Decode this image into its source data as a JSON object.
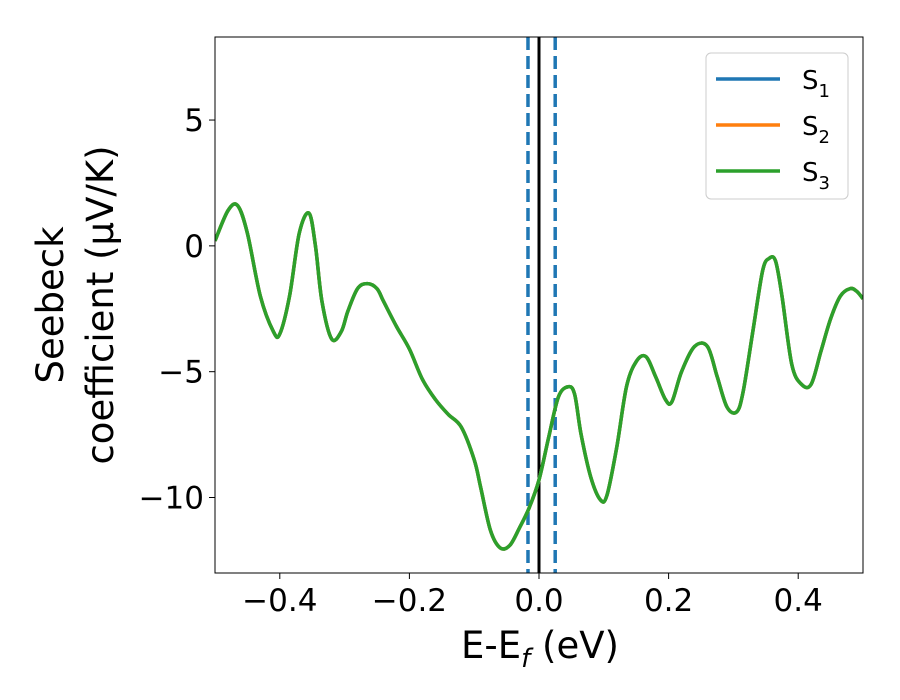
{
  "chart_data": {
    "type": "line",
    "xlabel": "E-E",
    "xlabel_sub": "f",
    "xlabel_unit": " (eV)",
    "ylabel_line1": "Seebeck",
    "ylabel_line2": "coefficient  (μV/K)",
    "xlim": [
      -0.5,
      0.5
    ],
    "ylim": [
      -13,
      8.3
    ],
    "xticks": [
      -0.4,
      -0.2,
      0.0,
      0.2,
      0.4
    ],
    "xtick_labels": [
      "−0.4",
      "−0.2",
      "0.0",
      "0.2",
      "0.4"
    ],
    "yticks": [
      -10,
      -5,
      0,
      5
    ],
    "ytick_labels": [
      "−10",
      "−5",
      "0",
      "5"
    ],
    "legend_position": "top-right",
    "vlines": [
      {
        "x": 0.0,
        "style": "solid",
        "color": "#000000"
      },
      {
        "x": -0.017,
        "style": "dashed",
        "color": "#1f77b4"
      },
      {
        "x": 0.025,
        "style": "dashed",
        "color": "#1f77b4"
      }
    ],
    "series": [
      {
        "name": "S",
        "sub": "1",
        "color": "#1f77b4"
      },
      {
        "name": "S",
        "sub": "2",
        "color": "#ff7f0e"
      },
      {
        "name": "S",
        "sub": "3",
        "color": "#2ca02c"
      }
    ],
    "x": [
      -0.5,
      -0.48,
      -0.465,
      -0.45,
      -0.43,
      -0.41,
      -0.4,
      -0.385,
      -0.37,
      -0.355,
      -0.345,
      -0.335,
      -0.32,
      -0.305,
      -0.295,
      -0.28,
      -0.265,
      -0.25,
      -0.24,
      -0.22,
      -0.2,
      -0.18,
      -0.16,
      -0.14,
      -0.12,
      -0.1,
      -0.09,
      -0.075,
      -0.06,
      -0.045,
      -0.03,
      -0.015,
      0.0,
      0.015,
      0.03,
      0.045,
      0.055,
      0.065,
      0.08,
      0.095,
      0.105,
      0.12,
      0.135,
      0.15,
      0.165,
      0.18,
      0.195,
      0.205,
      0.22,
      0.24,
      0.26,
      0.275,
      0.29,
      0.305,
      0.315,
      0.33,
      0.345,
      0.355,
      0.365,
      0.375,
      0.39,
      0.405,
      0.42,
      0.435,
      0.45,
      0.465,
      0.48,
      0.49,
      0.5
    ],
    "y": [
      0.2,
      1.4,
      1.6,
      0.5,
      -2.0,
      -3.4,
      -3.5,
      -2.0,
      0.5,
      1.3,
      0.0,
      -2.2,
      -3.7,
      -3.4,
      -2.6,
      -1.7,
      -1.5,
      -1.7,
      -2.2,
      -3.2,
      -4.1,
      -5.3,
      -6.1,
      -6.7,
      -7.2,
      -8.5,
      -9.6,
      -11.3,
      -12.0,
      -11.9,
      -11.2,
      -10.4,
      -9.3,
      -7.6,
      -6.0,
      -5.6,
      -5.9,
      -7.5,
      -9.2,
      -10.1,
      -9.9,
      -8.0,
      -5.6,
      -4.6,
      -4.4,
      -5.2,
      -6.1,
      -6.2,
      -5.0,
      -4.0,
      -4.0,
      -5.2,
      -6.4,
      -6.6,
      -5.8,
      -3.4,
      -1.0,
      -0.5,
      -0.6,
      -2.0,
      -4.7,
      -5.5,
      -5.5,
      -4.2,
      -2.9,
      -2.0,
      -1.7,
      -1.8,
      -2.1
    ]
  }
}
